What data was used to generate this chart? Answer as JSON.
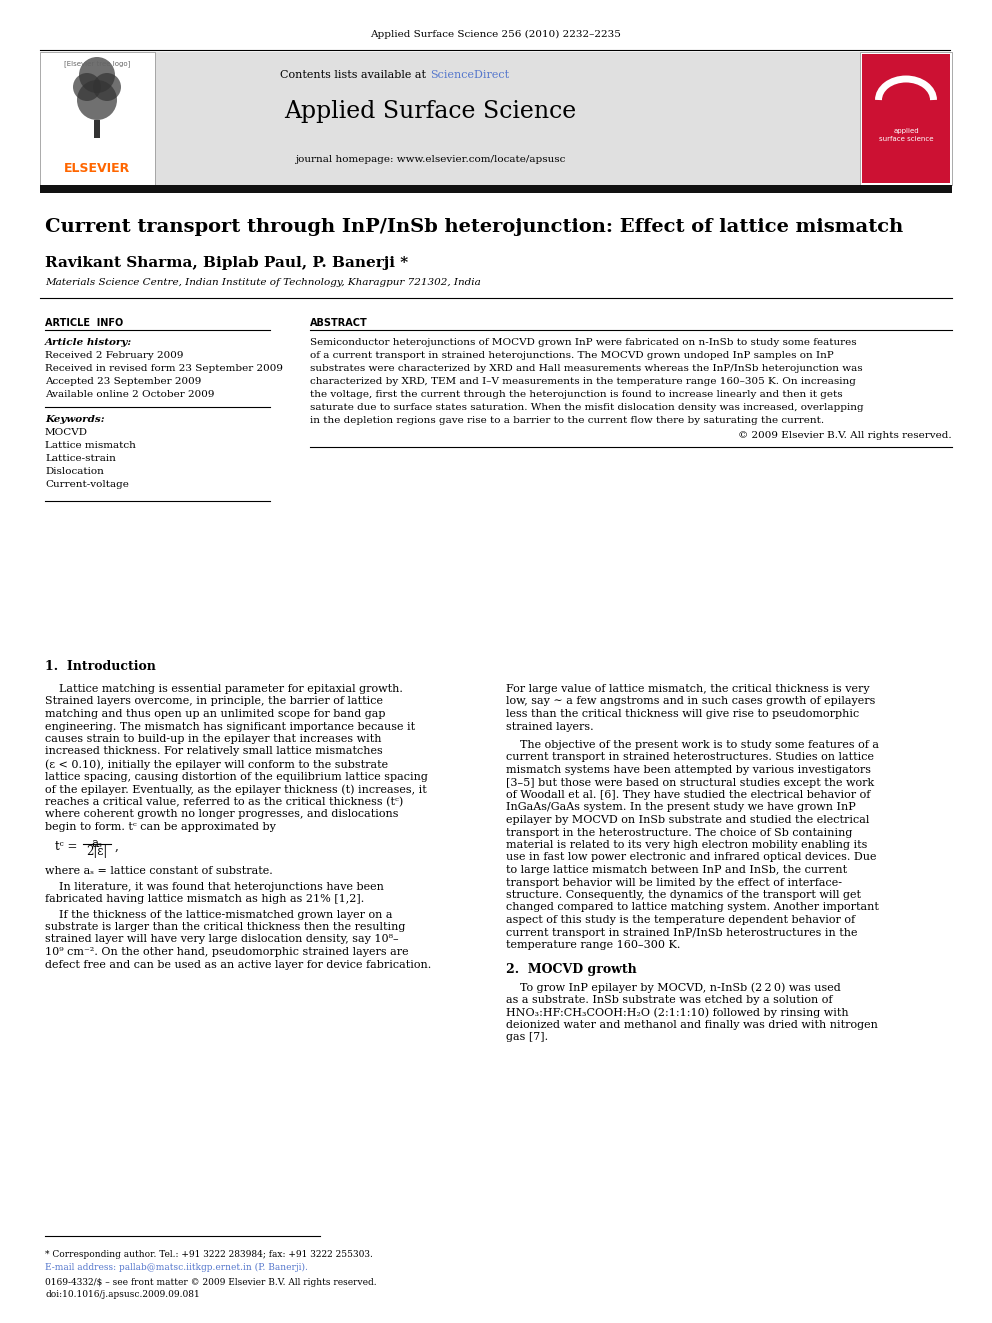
{
  "page_width": 9.92,
  "page_height": 13.23,
  "dpi": 100,
  "background": "#ffffff",
  "journal_ref": "Applied Surface Science 256 (2010) 2232–2235",
  "sciencedirect_color": "#5577cc",
  "journal_name": "Applied Surface Science",
  "journal_url": "journal homepage: www.elsevier.com/locate/apsusc",
  "header_bg": "#e0e0e0",
  "black_bar_color": "#111111",
  "title": "Current transport through InP/InSb heterojunction: Effect of lattice mismatch",
  "authors": "Ravikant Sharma, Biplab Paul, P. Banerji *",
  "affiliation": "Materials Science Centre, Indian Institute of Technology, Kharagpur 721302, India",
  "article_info_header": "ARTICLE  INFO",
  "abstract_header": "ABSTRACT",
  "article_history_label": "Article history:",
  "received1": "Received 2 February 2009",
  "received2": "Received in revised form 23 September 2009",
  "accepted": "Accepted 23 September 2009",
  "available": "Available online 2 October 2009",
  "keywords_label": "Keywords:",
  "keywords": [
    "MOCVD",
    "Lattice mismatch",
    "Lattice-strain",
    "Dislocation",
    "Current-voltage"
  ],
  "copyright": "© 2009 Elsevier B.V. All rights reserved.",
  "footnote1": "* Corresponding author. Tel.: +91 3222 283984; fax: +91 3222 255303.",
  "footnote2": "E-mail address: pallab@matsc.iitkgp.ernet.in (P. Banerji).",
  "footer1": "0169-4332/$ – see front matter © 2009 Elsevier B.V. All rights reserved.",
  "footer2": "doi:10.1016/j.apsusc.2009.09.081"
}
